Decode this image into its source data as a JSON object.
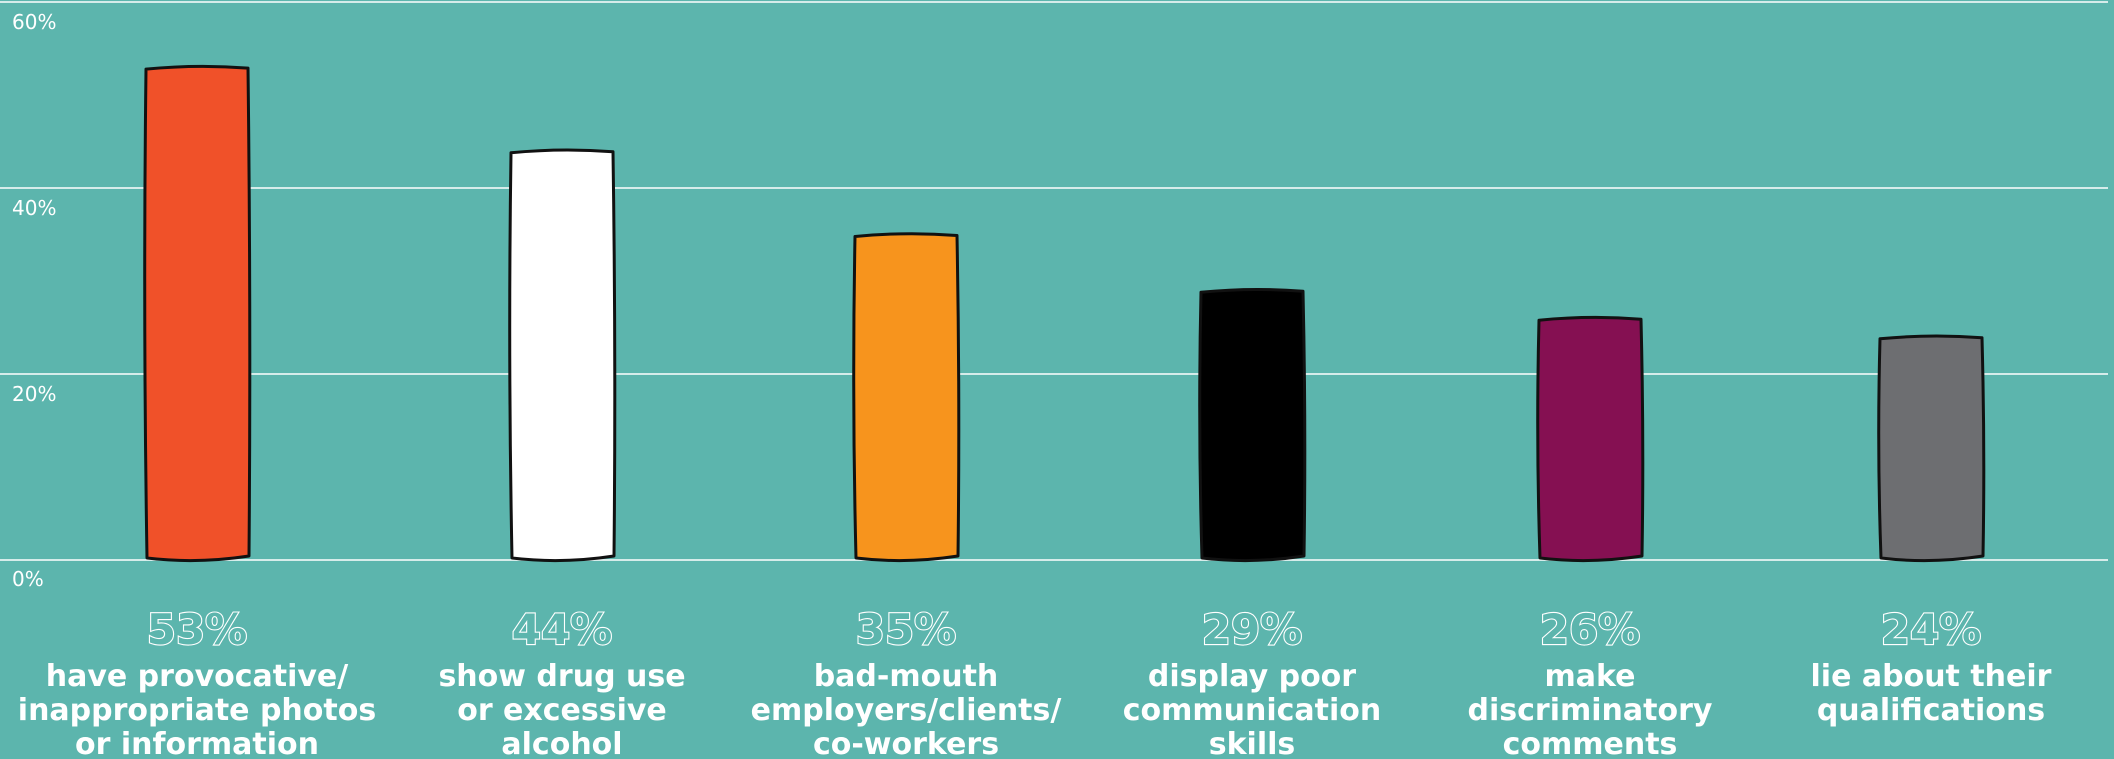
{
  "chart_data": {
    "type": "bar",
    "title": "",
    "xlabel": "",
    "ylabel": "",
    "ylim": [
      0,
      60
    ],
    "y_ticks": [
      "0%",
      "20%",
      "40%",
      "60%"
    ],
    "y_tick_values": [
      0,
      20,
      40,
      60
    ],
    "grid": true,
    "legend": "none",
    "categories": [
      [
        "have provocative/",
        "inappropriate photos",
        "or information"
      ],
      [
        "show drug use",
        "or excessive",
        "alcohol"
      ],
      [
        "bad-mouth",
        "employers/clients/",
        "co-workers"
      ],
      [
        "display poor",
        "communication",
        "skills"
      ],
      [
        "make",
        "discriminatory",
        "comments"
      ],
      [
        "lie about their",
        "qualifications"
      ]
    ],
    "values": [
      53,
      44,
      35,
      29,
      26,
      24
    ],
    "data_labels": [
      "53%",
      "44%",
      "35%",
      "29%",
      "26%",
      "24%"
    ],
    "colors": [
      "#f05129",
      "#ffffff",
      "#f7941d",
      "#000000",
      "#851052",
      "#6d6e71"
    ]
  }
}
